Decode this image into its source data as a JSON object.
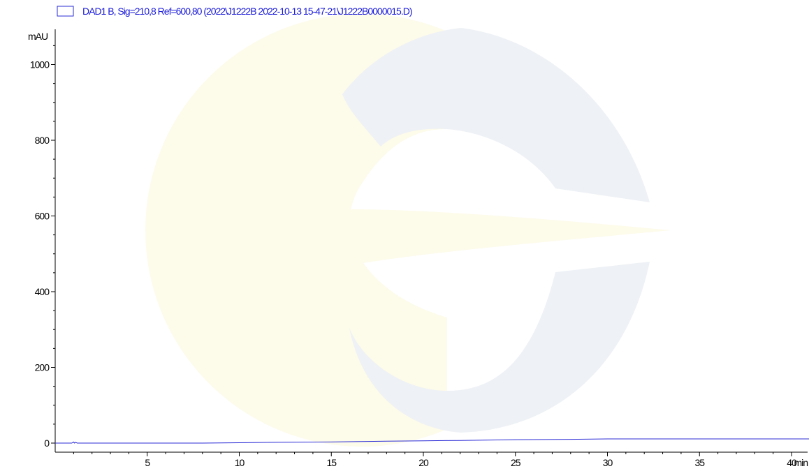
{
  "colors": {
    "trace": "#2b2bd6",
    "axis": "#000000",
    "legend_text": "#1a1ad9",
    "watermark_grey": "#eef1f5",
    "watermark_yellow": "#fdfbea"
  },
  "watermark": {
    "icon": "logo-watermark-icon"
  },
  "chart_data": {
    "type": "line",
    "title": "",
    "xlabel": "",
    "ylabel": "mAU",
    "x_unit": "min",
    "xlim": [
      0,
      41
    ],
    "ylim": [
      -30,
      1085
    ],
    "x_ticks": [
      5,
      10,
      15,
      20,
      25,
      30,
      35,
      40
    ],
    "x_tick_labels": [
      "5",
      "10",
      "15",
      "20",
      "25",
      "30",
      "35",
      "40"
    ],
    "y_ticks": [
      0,
      200,
      400,
      600,
      800,
      1000
    ],
    "y_tick_labels": [
      "0",
      "200",
      "400",
      "600",
      "800",
      "1000"
    ],
    "grid": false,
    "legend": {
      "placement": "top-left"
    },
    "series": [
      {
        "name": "DAD1 B, Sig=210,8 Ref=600,80 (2022\\J1222B 2022-10-13 15-47-21\\J1222B0000015.D)",
        "x": [
          0,
          0.9,
          1.0,
          1.05,
          1.1,
          1.2,
          1.3,
          2,
          3,
          5,
          8,
          10,
          12,
          15,
          18,
          20,
          22,
          25,
          28,
          30,
          35,
          40,
          41
        ],
        "y": [
          0,
          0,
          3,
          0,
          2,
          0,
          0,
          0,
          0,
          0,
          0,
          1,
          2,
          3,
          5,
          6,
          7,
          9,
          10,
          11,
          11,
          11,
          11
        ]
      }
    ]
  }
}
